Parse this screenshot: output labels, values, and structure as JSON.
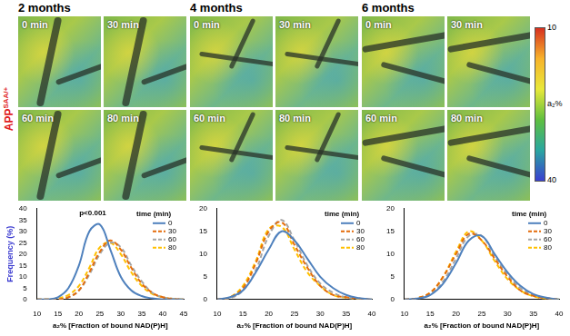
{
  "row_label": {
    "text": "APP",
    "superscript": "SAA/+"
  },
  "panels": [
    {
      "title": "2 months",
      "tiles": [
        "0 min",
        "30 min",
        "60 min",
        "80 min"
      ]
    },
    {
      "title": "4 months",
      "tiles": [
        "0 min",
        "30 min",
        "60 min",
        "80 min"
      ]
    },
    {
      "title": "6 months",
      "tiles": [
        "0 min",
        "30 min",
        "60 min",
        "80 min"
      ]
    }
  ],
  "colorbar": {
    "label": "a₂%",
    "lim": [
      10,
      40
    ],
    "ticks": [
      10,
      40
    ]
  },
  "chart_data": [
    {
      "type": "line",
      "x_label": "a₂% [Fraction of bound NAD(P)H]",
      "y_label": "Frequency (%)",
      "annotation": "p<0.001",
      "legend_title": "time (min)",
      "legend": "upper right",
      "grid": false,
      "x": [
        10,
        12.5,
        15,
        17.5,
        20,
        22.5,
        25,
        27.5,
        30,
        32.5,
        35,
        37.5,
        40,
        42.5,
        45
      ],
      "xlim": [
        10,
        45
      ],
      "xticks": [
        10,
        15,
        20,
        25,
        30,
        35,
        40,
        45
      ],
      "ylim": [
        0,
        40
      ],
      "yticks": [
        0,
        5,
        10,
        15,
        20,
        25,
        30,
        35,
        40
      ],
      "series": [
        {
          "name": "0",
          "color": "#4f81bd",
          "line_style": "solid",
          "values": [
            0,
            0,
            1,
            5,
            15,
            30,
            33,
            22,
            10,
            4,
            1.5,
            0.5,
            0,
            0,
            0
          ]
        },
        {
          "name": "30",
          "color": "#e46c0a",
          "line_style": "dashed",
          "values": [
            0,
            0,
            0,
            1,
            4,
            12,
            21,
            26,
            22,
            14,
            7,
            3,
            1,
            0.3,
            0
          ]
        },
        {
          "name": "60",
          "color": "#a5a5a5",
          "line_style": "dashed",
          "values": [
            0,
            0,
            0,
            1,
            4,
            11,
            20,
            25,
            23,
            15,
            8,
            3,
            1,
            0.3,
            0
          ]
        },
        {
          "name": "80",
          "color": "#ffc000",
          "line_style": "dashed",
          "values": [
            0,
            0,
            0.5,
            2,
            6,
            14,
            23,
            25,
            20,
            12,
            6,
            2.5,
            1,
            0.3,
            0
          ]
        }
      ]
    },
    {
      "type": "line",
      "x_label": "a₂% [Fraction of bound NAD(P)H]",
      "legend_title": "time (min)",
      "legend": "upper right",
      "grid": false,
      "x": [
        10,
        12.5,
        15,
        17.5,
        20,
        22.5,
        25,
        27.5,
        30,
        32.5,
        35,
        37.5,
        40
      ],
      "xlim": [
        10,
        40
      ],
      "xticks": [
        10,
        15,
        20,
        25,
        30,
        35,
        40
      ],
      "ylim": [
        0,
        20
      ],
      "yticks": [
        0,
        5,
        10,
        15,
        20
      ],
      "series": [
        {
          "name": "0",
          "color": "#4f81bd",
          "line_style": "solid",
          "values": [
            0,
            0.5,
            2,
            6,
            11,
            15,
            13,
            9,
            5,
            2.5,
            1,
            0.3,
            0
          ]
        },
        {
          "name": "30",
          "color": "#e46c0a",
          "line_style": "dashed",
          "values": [
            0,
            0.5,
            2.5,
            8,
            15,
            17,
            12,
            7,
            3,
            1,
            0.5,
            0.2,
            0
          ]
        },
        {
          "name": "60",
          "color": "#a5a5a5",
          "line_style": "dashed",
          "values": [
            0,
            0.3,
            2,
            6.5,
            14,
            17.5,
            13,
            7.5,
            3.5,
            1.5,
            0.5,
            0.2,
            0
          ]
        },
        {
          "name": "80",
          "color": "#ffc000",
          "line_style": "dashed",
          "values": [
            0,
            0.5,
            3,
            8.5,
            15.5,
            16,
            11,
            6,
            3,
            1,
            0.4,
            0.1,
            0
          ]
        }
      ]
    },
    {
      "type": "line",
      "x_label": "a₂% [Fraction of bound NAD(P)H]",
      "legend_title": "time (min)",
      "legend": "upper right",
      "grid": false,
      "x": [
        10,
        12.5,
        15,
        17.5,
        20,
        22.5,
        25,
        27.5,
        30,
        32.5,
        35,
        37.5,
        40
      ],
      "xlim": [
        10,
        40
      ],
      "xticks": [
        10,
        15,
        20,
        25,
        30,
        35,
        40
      ],
      "ylim": [
        0,
        20
      ],
      "yticks": [
        0,
        5,
        10,
        15,
        20
      ],
      "series": [
        {
          "name": "0",
          "color": "#4f81bd",
          "line_style": "solid",
          "values": [
            0,
            0.2,
            1,
            3.5,
            8,
            13,
            14,
            10,
            6,
            3,
            1.2,
            0.4,
            0
          ]
        },
        {
          "name": "30",
          "color": "#e46c0a",
          "line_style": "dashed",
          "values": [
            0,
            0.3,
            1.5,
            5,
            10,
            14.5,
            13,
            9,
            5,
            2,
            0.8,
            0.3,
            0
          ]
        },
        {
          "name": "60",
          "color": "#a5a5a5",
          "line_style": "dashed",
          "values": [
            0,
            0.2,
            1.2,
            4,
            9,
            14,
            14,
            9.5,
            5.5,
            2.5,
            1,
            0.3,
            0
          ]
        },
        {
          "name": "80",
          "color": "#ffc000",
          "line_style": "dashed",
          "values": [
            0,
            0.3,
            1.5,
            5,
            10.5,
            15,
            13,
            8.5,
            4.5,
            2,
            0.7,
            0.2,
            0
          ]
        }
      ]
    }
  ]
}
